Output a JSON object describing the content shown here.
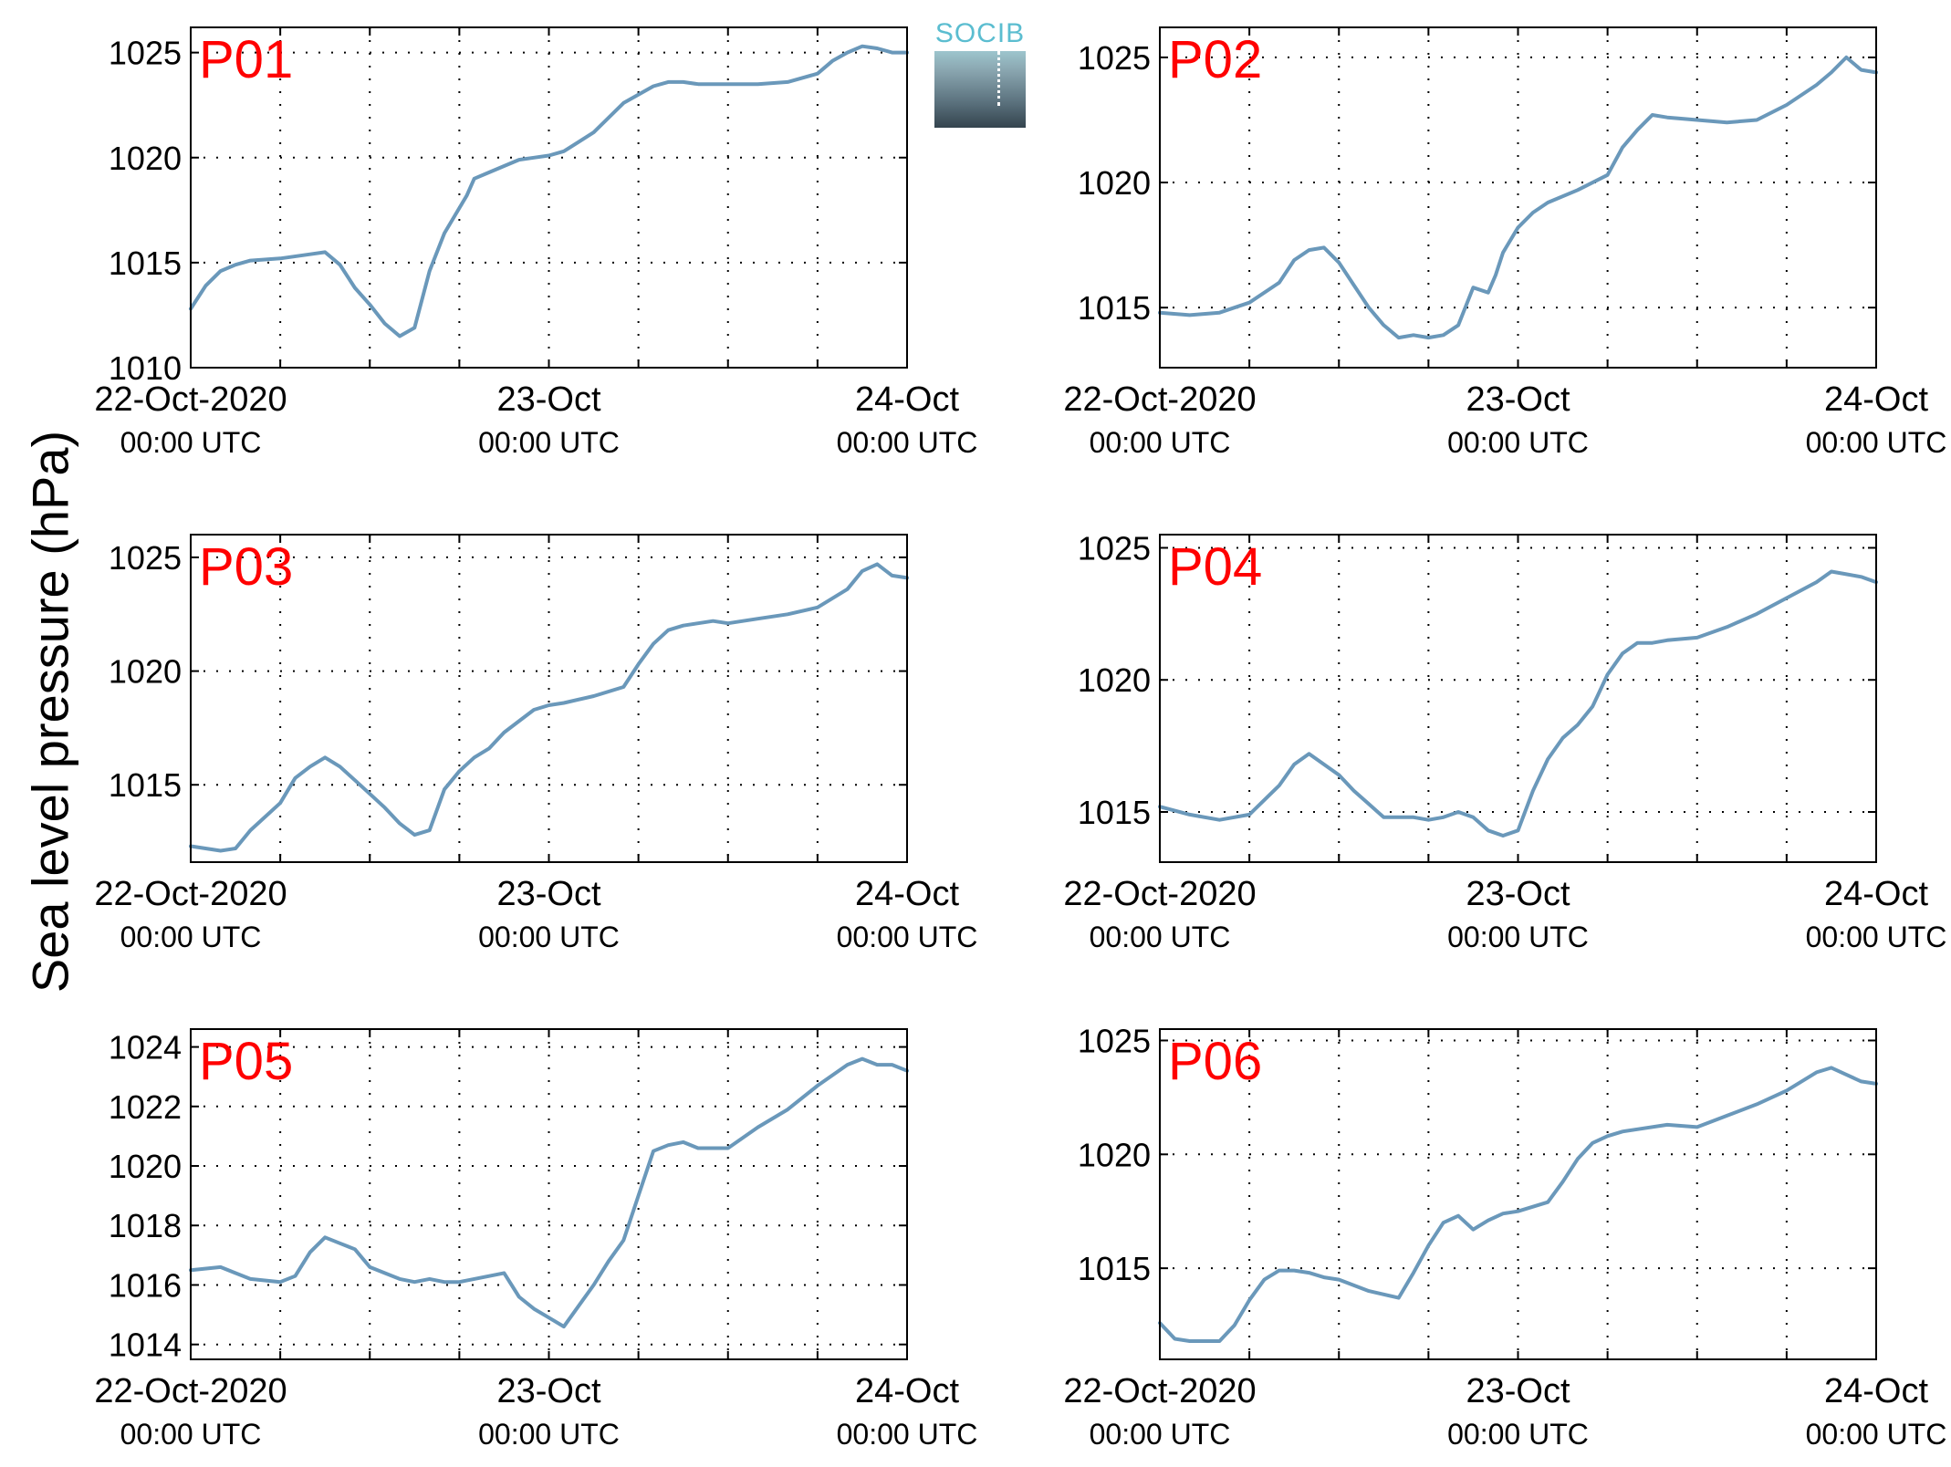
{
  "figure": {
    "ylabel": "Sea level pressure (hPa)",
    "logo_text": "SOCIB"
  },
  "colors": {
    "line": "#6a98ba",
    "panel_label": "#ff0000",
    "axis": "#000000",
    "grid": "#000000"
  },
  "chart_data": [
    {
      "type": "line",
      "panel_label": "P01",
      "x": [
        "22-Oct-2020 00:00",
        "22-Oct-2020 01:00",
        "22-Oct-2020 02:00",
        "22-Oct-2020 03:00",
        "22-Oct-2020 04:00",
        "22-Oct-2020 06:00",
        "22-Oct-2020 08:00",
        "22-Oct-2020 09:00",
        "22-Oct-2020 10:00",
        "22-Oct-2020 11:00",
        "22-Oct-2020 12:00",
        "22-Oct-2020 13:00",
        "22-Oct-2020 14:00",
        "22-Oct-2020 15:00",
        "22-Oct-2020 16:00",
        "22-Oct-2020 17:00",
        "22-Oct-2020 18:00",
        "22-Oct-2020 18:30",
        "22-Oct-2020 19:00",
        "22-Oct-2020 20:00",
        "22-Oct-2020 21:00",
        "22-Oct-2020 22:00",
        "22-Oct-2020 23:00",
        "23-Oct-2020 00:00",
        "23-Oct-2020 01:00",
        "23-Oct-2020 03:00",
        "23-Oct-2020 05:00",
        "23-Oct-2020 07:00",
        "23-Oct-2020 08:00",
        "23-Oct-2020 09:00",
        "23-Oct-2020 10:00",
        "23-Oct-2020 12:00",
        "23-Oct-2020 14:00",
        "23-Oct-2020 16:00",
        "23-Oct-2020 18:00",
        "23-Oct-2020 19:00",
        "23-Oct-2020 20:00",
        "23-Oct-2020 21:00",
        "23-Oct-2020 22:00",
        "23-Oct-2020 23:00",
        "24-Oct-2020 00:00"
      ],
      "y": [
        1012.8,
        1013.9,
        1014.6,
        1014.9,
        1015.1,
        1015.2,
        1015.4,
        1015.5,
        1014.9,
        1013.8,
        1013.0,
        1012.1,
        1011.5,
        1011.9,
        1014.6,
        1016.4,
        1017.6,
        1018.2,
        1019.0,
        1019.3,
        1019.6,
        1019.9,
        1020.0,
        1020.1,
        1020.3,
        1021.2,
        1022.6,
        1023.4,
        1023.6,
        1023.6,
        1023.5,
        1023.5,
        1023.5,
        1023.6,
        1024.0,
        1024.6,
        1025.0,
        1025.3,
        1025.2,
        1025.0,
        1025.0
      ],
      "ylim": [
        1010,
        1026.2
      ],
      "yticks": [
        1010,
        1015,
        1020,
        1025
      ],
      "xlim": [
        "22-Oct-2020 00:00",
        "24-Oct-2020 00:00"
      ],
      "grid": true,
      "xtick_labels": [
        {
          "date": "22-Oct-2020",
          "time": "00:00 UTC"
        },
        {
          "date": "23-Oct",
          "time": "00:00 UTC"
        },
        {
          "date": "24-Oct",
          "time": "00:00 UTC"
        }
      ]
    },
    {
      "type": "line",
      "panel_label": "P02",
      "x": [
        "22-Oct-2020 00:00",
        "22-Oct-2020 02:00",
        "22-Oct-2020 04:00",
        "22-Oct-2020 06:00",
        "22-Oct-2020 08:00",
        "22-Oct-2020 09:00",
        "22-Oct-2020 10:00",
        "22-Oct-2020 11:00",
        "22-Oct-2020 12:00",
        "22-Oct-2020 13:00",
        "22-Oct-2020 14:00",
        "22-Oct-2020 15:00",
        "22-Oct-2020 16:00",
        "22-Oct-2020 17:00",
        "22-Oct-2020 18:00",
        "22-Oct-2020 19:00",
        "22-Oct-2020 20:00",
        "22-Oct-2020 21:00",
        "22-Oct-2020 22:00",
        "22-Oct-2020 22:30",
        "22-Oct-2020 23:00",
        "23-Oct-2020 00:00",
        "23-Oct-2020 01:00",
        "23-Oct-2020 02:00",
        "23-Oct-2020 04:00",
        "23-Oct-2020 06:00",
        "23-Oct-2020 07:00",
        "23-Oct-2020 08:00",
        "23-Oct-2020 09:00",
        "23-Oct-2020 10:00",
        "23-Oct-2020 12:00",
        "23-Oct-2020 14:00",
        "23-Oct-2020 16:00",
        "23-Oct-2020 18:00",
        "23-Oct-2020 20:00",
        "23-Oct-2020 21:00",
        "23-Oct-2020 22:00",
        "23-Oct-2020 23:00",
        "24-Oct-2020 00:00"
      ],
      "y": [
        1014.8,
        1014.7,
        1014.8,
        1015.2,
        1016.0,
        1016.9,
        1017.3,
        1017.4,
        1016.8,
        1015.9,
        1015.0,
        1014.3,
        1013.8,
        1013.9,
        1013.8,
        1013.9,
        1014.3,
        1015.8,
        1015.6,
        1016.3,
        1017.2,
        1018.2,
        1018.8,
        1019.2,
        1019.7,
        1020.3,
        1021.4,
        1022.1,
        1022.7,
        1022.6,
        1022.5,
        1022.4,
        1022.5,
        1023.1,
        1023.9,
        1024.4,
        1025.0,
        1024.5,
        1024.4
      ],
      "ylim": [
        1012.6,
        1026.2
      ],
      "yticks": [
        1015,
        1020,
        1025
      ],
      "xlim": [
        "22-Oct-2020 00:00",
        "24-Oct-2020 00:00"
      ],
      "grid": true,
      "xtick_labels": [
        {
          "date": "22-Oct-2020",
          "time": "00:00 UTC"
        },
        {
          "date": "23-Oct",
          "time": "00:00 UTC"
        },
        {
          "date": "24-Oct",
          "time": "00:00 UTC"
        }
      ]
    },
    {
      "type": "line",
      "panel_label": "P03",
      "x": [
        "22-Oct-2020 00:00",
        "22-Oct-2020 02:00",
        "22-Oct-2020 03:00",
        "22-Oct-2020 04:00",
        "22-Oct-2020 06:00",
        "22-Oct-2020 07:00",
        "22-Oct-2020 08:00",
        "22-Oct-2020 09:00",
        "22-Oct-2020 10:00",
        "22-Oct-2020 11:00",
        "22-Oct-2020 12:00",
        "22-Oct-2020 13:00",
        "22-Oct-2020 14:00",
        "22-Oct-2020 15:00",
        "22-Oct-2020 16:00",
        "22-Oct-2020 17:00",
        "22-Oct-2020 18:00",
        "22-Oct-2020 19:00",
        "22-Oct-2020 20:00",
        "22-Oct-2020 21:00",
        "22-Oct-2020 22:00",
        "22-Oct-2020 23:00",
        "23-Oct-2020 00:00",
        "23-Oct-2020 01:00",
        "23-Oct-2020 03:00",
        "23-Oct-2020 05:00",
        "23-Oct-2020 06:00",
        "23-Oct-2020 07:00",
        "23-Oct-2020 08:00",
        "23-Oct-2020 09:00",
        "23-Oct-2020 10:00",
        "23-Oct-2020 11:00",
        "23-Oct-2020 12:00",
        "23-Oct-2020 14:00",
        "23-Oct-2020 16:00",
        "23-Oct-2020 18:00",
        "23-Oct-2020 20:00",
        "23-Oct-2020 21:00",
        "23-Oct-2020 22:00",
        "23-Oct-2020 23:00",
        "24-Oct-2020 00:00"
      ],
      "y": [
        1012.3,
        1012.1,
        1012.2,
        1013.0,
        1014.2,
        1015.3,
        1015.8,
        1016.2,
        1015.8,
        1015.2,
        1014.6,
        1014.0,
        1013.3,
        1012.8,
        1013.0,
        1014.8,
        1015.6,
        1016.2,
        1016.6,
        1017.3,
        1017.8,
        1018.3,
        1018.5,
        1018.6,
        1018.9,
        1019.3,
        1020.3,
        1021.2,
        1021.8,
        1022.0,
        1022.1,
        1022.2,
        1022.1,
        1022.3,
        1022.5,
        1022.8,
        1023.6,
        1024.4,
        1024.7,
        1024.2,
        1024.1
      ],
      "ylim": [
        1011.6,
        1026.0
      ],
      "yticks": [
        1015,
        1020,
        1025
      ],
      "xlim": [
        "22-Oct-2020 00:00",
        "24-Oct-2020 00:00"
      ],
      "grid": true,
      "xtick_labels": [
        {
          "date": "22-Oct-2020",
          "time": "00:00 UTC"
        },
        {
          "date": "23-Oct",
          "time": "00:00 UTC"
        },
        {
          "date": "24-Oct",
          "time": "00:00 UTC"
        }
      ]
    },
    {
      "type": "line",
      "panel_label": "P04",
      "x": [
        "22-Oct-2020 00:00",
        "22-Oct-2020 02:00",
        "22-Oct-2020 04:00",
        "22-Oct-2020 06:00",
        "22-Oct-2020 08:00",
        "22-Oct-2020 09:00",
        "22-Oct-2020 10:00",
        "22-Oct-2020 11:00",
        "22-Oct-2020 12:00",
        "22-Oct-2020 13:00",
        "22-Oct-2020 14:00",
        "22-Oct-2020 15:00",
        "22-Oct-2020 16:00",
        "22-Oct-2020 17:00",
        "22-Oct-2020 18:00",
        "22-Oct-2020 19:00",
        "22-Oct-2020 20:00",
        "22-Oct-2020 21:00",
        "22-Oct-2020 22:00",
        "22-Oct-2020 23:00",
        "23-Oct-2020 00:00",
        "23-Oct-2020 01:00",
        "23-Oct-2020 02:00",
        "23-Oct-2020 03:00",
        "23-Oct-2020 04:00",
        "23-Oct-2020 05:00",
        "23-Oct-2020 06:00",
        "23-Oct-2020 07:00",
        "23-Oct-2020 08:00",
        "23-Oct-2020 09:00",
        "23-Oct-2020 10:00",
        "23-Oct-2020 12:00",
        "23-Oct-2020 14:00",
        "23-Oct-2020 16:00",
        "23-Oct-2020 18:00",
        "23-Oct-2020 20:00",
        "23-Oct-2020 21:00",
        "23-Oct-2020 22:00",
        "23-Oct-2020 23:00",
        "24-Oct-2020 00:00"
      ],
      "y": [
        1015.2,
        1014.9,
        1014.7,
        1014.9,
        1016.0,
        1016.8,
        1017.2,
        1016.8,
        1016.4,
        1015.8,
        1015.3,
        1014.8,
        1014.8,
        1014.8,
        1014.7,
        1014.8,
        1015.0,
        1014.8,
        1014.3,
        1014.1,
        1014.3,
        1015.8,
        1017.0,
        1017.8,
        1018.3,
        1019.0,
        1020.2,
        1021.0,
        1021.4,
        1021.4,
        1021.5,
        1021.6,
        1022.0,
        1022.5,
        1023.1,
        1023.7,
        1024.1,
        1024.0,
        1023.9,
        1023.7
      ],
      "ylim": [
        1013.1,
        1025.5
      ],
      "yticks": [
        1015,
        1020,
        1025
      ],
      "xlim": [
        "22-Oct-2020 00:00",
        "24-Oct-2020 00:00"
      ],
      "grid": true,
      "xtick_labels": [
        {
          "date": "22-Oct-2020",
          "time": "00:00 UTC"
        },
        {
          "date": "23-Oct",
          "time": "00:00 UTC"
        },
        {
          "date": "24-Oct",
          "time": "00:00 UTC"
        }
      ]
    },
    {
      "type": "line",
      "panel_label": "P05",
      "x": [
        "22-Oct-2020 00:00",
        "22-Oct-2020 02:00",
        "22-Oct-2020 04:00",
        "22-Oct-2020 06:00",
        "22-Oct-2020 07:00",
        "22-Oct-2020 08:00",
        "22-Oct-2020 09:00",
        "22-Oct-2020 10:00",
        "22-Oct-2020 11:00",
        "22-Oct-2020 12:00",
        "22-Oct-2020 13:00",
        "22-Oct-2020 14:00",
        "22-Oct-2020 15:00",
        "22-Oct-2020 16:00",
        "22-Oct-2020 17:00",
        "22-Oct-2020 18:00",
        "22-Oct-2020 19:00",
        "22-Oct-2020 20:00",
        "22-Oct-2020 21:00",
        "22-Oct-2020 22:00",
        "22-Oct-2020 23:00",
        "23-Oct-2020 00:00",
        "23-Oct-2020 01:00",
        "23-Oct-2020 02:00",
        "23-Oct-2020 03:00",
        "23-Oct-2020 04:00",
        "23-Oct-2020 05:00",
        "23-Oct-2020 06:00",
        "23-Oct-2020 07:00",
        "23-Oct-2020 08:00",
        "23-Oct-2020 09:00",
        "23-Oct-2020 10:00",
        "23-Oct-2020 12:00",
        "23-Oct-2020 14:00",
        "23-Oct-2020 16:00",
        "23-Oct-2020 18:00",
        "23-Oct-2020 20:00",
        "23-Oct-2020 21:00",
        "23-Oct-2020 22:00",
        "23-Oct-2020 23:00",
        "24-Oct-2020 00:00"
      ],
      "y": [
        1016.5,
        1016.6,
        1016.2,
        1016.1,
        1016.3,
        1017.1,
        1017.6,
        1017.4,
        1017.2,
        1016.6,
        1016.4,
        1016.2,
        1016.1,
        1016.2,
        1016.1,
        1016.1,
        1016.2,
        1016.3,
        1016.4,
        1015.6,
        1015.2,
        1014.9,
        1014.6,
        1015.3,
        1016.0,
        1016.8,
        1017.5,
        1019.0,
        1020.5,
        1020.7,
        1020.8,
        1020.6,
        1020.6,
        1021.3,
        1021.9,
        1022.7,
        1023.4,
        1023.6,
        1023.4,
        1023.4,
        1023.2
      ],
      "ylim": [
        1013.5,
        1024.6
      ],
      "yticks": [
        1014,
        1016,
        1018,
        1020,
        1022,
        1024
      ],
      "xlim": [
        "22-Oct-2020 00:00",
        "24-Oct-2020 00:00"
      ],
      "grid": true,
      "xtick_labels": [
        {
          "date": "22-Oct-2020",
          "time": "00:00 UTC"
        },
        {
          "date": "23-Oct",
          "time": "00:00 UTC"
        },
        {
          "date": "24-Oct",
          "time": "00:00 UTC"
        }
      ]
    },
    {
      "type": "line",
      "panel_label": "P06",
      "x": [
        "22-Oct-2020 00:00",
        "22-Oct-2020 01:00",
        "22-Oct-2020 02:00",
        "22-Oct-2020 04:00",
        "22-Oct-2020 05:00",
        "22-Oct-2020 06:00",
        "22-Oct-2020 07:00",
        "22-Oct-2020 08:00",
        "22-Oct-2020 09:00",
        "22-Oct-2020 10:00",
        "22-Oct-2020 11:00",
        "22-Oct-2020 12:00",
        "22-Oct-2020 14:00",
        "22-Oct-2020 16:00",
        "22-Oct-2020 17:00",
        "22-Oct-2020 18:00",
        "22-Oct-2020 19:00",
        "22-Oct-2020 20:00",
        "22-Oct-2020 21:00",
        "22-Oct-2020 22:00",
        "22-Oct-2020 23:00",
        "23-Oct-2020 00:00",
        "23-Oct-2020 02:00",
        "23-Oct-2020 03:00",
        "23-Oct-2020 04:00",
        "23-Oct-2020 05:00",
        "23-Oct-2020 06:00",
        "23-Oct-2020 07:00",
        "23-Oct-2020 08:00",
        "23-Oct-2020 10:00",
        "23-Oct-2020 12:00",
        "23-Oct-2020 14:00",
        "23-Oct-2020 16:00",
        "23-Oct-2020 18:00",
        "23-Oct-2020 20:00",
        "23-Oct-2020 21:00",
        "23-Oct-2020 22:00",
        "23-Oct-2020 23:00",
        "24-Oct-2020 00:00"
      ],
      "y": [
        1012.6,
        1011.9,
        1011.8,
        1011.8,
        1012.5,
        1013.6,
        1014.5,
        1014.9,
        1014.9,
        1014.8,
        1014.6,
        1014.5,
        1014.0,
        1013.7,
        1014.8,
        1016.0,
        1017.0,
        1017.3,
        1016.7,
        1017.1,
        1017.4,
        1017.5,
        1017.9,
        1018.8,
        1019.8,
        1020.5,
        1020.8,
        1021.0,
        1021.1,
        1021.3,
        1021.2,
        1021.7,
        1022.2,
        1022.8,
        1023.6,
        1023.8,
        1023.5,
        1023.2,
        1023.1
      ],
      "ylim": [
        1011.0,
        1025.5
      ],
      "yticks": [
        1015,
        1020,
        1025
      ],
      "xlim": [
        "22-Oct-2020 00:00",
        "24-Oct-2020 00:00"
      ],
      "grid": true,
      "xtick_labels": [
        {
          "date": "22-Oct-2020",
          "time": "00:00 UTC"
        },
        {
          "date": "23-Oct",
          "time": "00:00 UTC"
        },
        {
          "date": "24-Oct",
          "time": "00:00 UTC"
        }
      ]
    }
  ]
}
